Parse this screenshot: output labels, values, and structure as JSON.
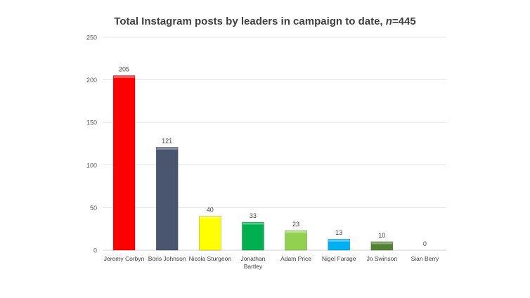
{
  "chart_data": {
    "type": "bar",
    "title_prefix": "Total Instagram posts by leaders in campaign to date, ",
    "title_n": "n",
    "title_suffix": "=445",
    "categories": [
      "Jeremy Corbyn",
      "Boris Johnson",
      "Nicola Sturgeon",
      "Jonathan Bartley",
      "Adam Price",
      "Nigel Farage",
      "Jo Swinson",
      "Sian Berry"
    ],
    "category_lines": [
      [
        "Jeremy Corbyn"
      ],
      [
        "Boris Johnson"
      ],
      [
        "Nicola Sturgeon"
      ],
      [
        "Jonathan",
        "Bartley"
      ],
      [
        "Adam Price"
      ],
      [
        "Nigel Farage"
      ],
      [
        "Jo Swinson"
      ],
      [
        "Sian Berry"
      ]
    ],
    "values": [
      205,
      121,
      40,
      33,
      23,
      13,
      10,
      0
    ],
    "colors": [
      "#ff0000",
      "#4a5670",
      "#ffff00",
      "#00b050",
      "#92d050",
      "#00b0f0",
      "#548235",
      "#bfbfbf"
    ],
    "ylim": [
      0,
      250
    ],
    "yticks": [
      0,
      50,
      100,
      150,
      200,
      250
    ],
    "grid": true,
    "data_labels": true,
    "legend": "none"
  }
}
